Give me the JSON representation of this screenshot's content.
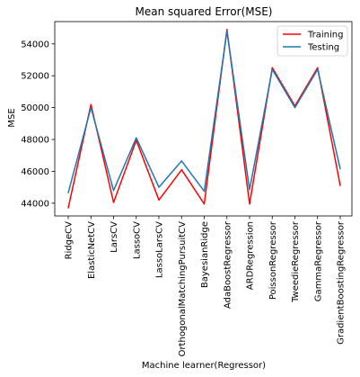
{
  "chart_data": {
    "type": "line",
    "title": "Mean squared Error(MSE)",
    "xlabel": "Machine learner(Regressor)",
    "ylabel": "MSE",
    "categories": [
      "RidgeCV",
      "ElasticNetCV",
      "LarsCV",
      "LassoCV",
      "LassoLarsCV",
      "OrthogonalMatchingPursuitCV",
      "BayesianRidge",
      "AdaBoostRegressor",
      "ARDRegression",
      "PoissonRegressor",
      "TweedieRegressor",
      "GammaRegressor",
      "GradientBoostingRegressor"
    ],
    "ylim": [
      43200,
      55400
    ],
    "yticks": [
      44000,
      46000,
      48000,
      50000,
      52000,
      54000
    ],
    "grid": false,
    "legend_position": "top-right",
    "series": [
      {
        "name": "Training",
        "color": "#ff0000",
        "values": [
          43700,
          50200,
          44050,
          47950,
          44200,
          46100,
          43950,
          54900,
          43950,
          52500,
          50100,
          52500,
          45100
        ]
      },
      {
        "name": "Testing",
        "color": "#1f77b4",
        "values": [
          44650,
          50000,
          44800,
          48100,
          45000,
          46650,
          44750,
          54800,
          44850,
          52400,
          50000,
          52400,
          46150
        ]
      }
    ]
  }
}
